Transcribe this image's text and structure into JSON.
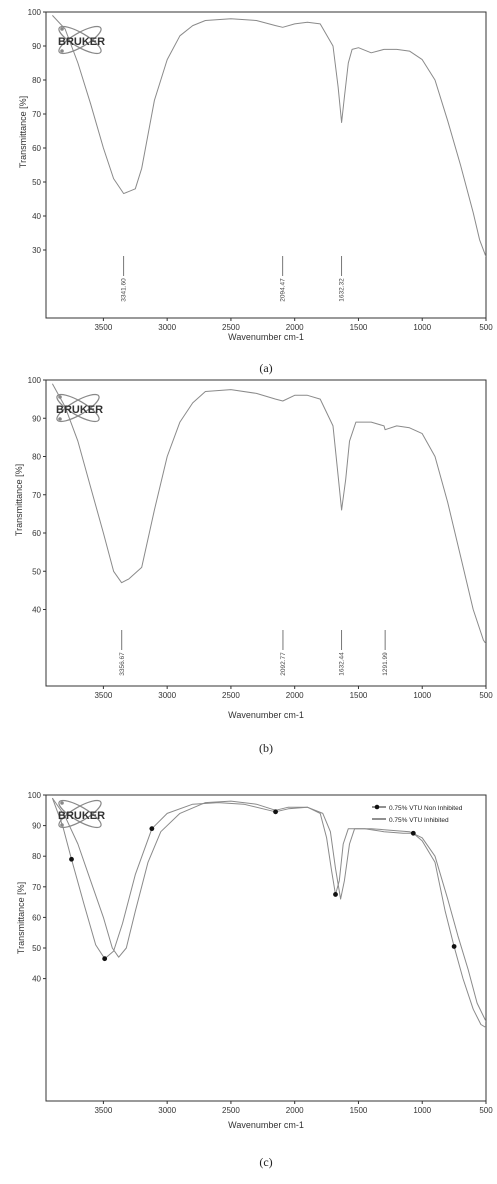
{
  "logo_text": "BRUKER",
  "colors": {
    "curve": "#8a8a8a",
    "axis": "#333333",
    "text": "#333333"
  },
  "chart_data": [
    {
      "type": "line",
      "panel_label": "(a)",
      "xlabel": "Wavenumber cm-1",
      "ylabel": "Transmittance [%]",
      "xlim": [
        3950,
        500
      ],
      "ylim": [
        10,
        100
      ],
      "x_reversed": true,
      "x_ticks": [
        3500,
        3000,
        2500,
        2000,
        1500,
        1000,
        500
      ],
      "y_ticks": [
        30,
        40,
        50,
        60,
        70,
        80,
        90,
        100
      ],
      "series": [
        {
          "points": [
            [
              3900,
              99
            ],
            [
              3800,
              95
            ],
            [
              3700,
              85
            ],
            [
              3600,
              73
            ],
            [
              3500,
              60
            ],
            [
              3420,
              51
            ],
            [
              3341,
              46.6
            ],
            [
              3250,
              48
            ],
            [
              3200,
              54
            ],
            [
              3100,
              74
            ],
            [
              3000,
              86
            ],
            [
              2900,
              93
            ],
            [
              2800,
              96
            ],
            [
              2700,
              97.5
            ],
            [
              2500,
              98
            ],
            [
              2300,
              97.5
            ],
            [
              2150,
              96
            ],
            [
              2094,
              95.5
            ],
            [
              2000,
              96.5
            ],
            [
              1900,
              97
            ],
            [
              1800,
              96.5
            ],
            [
              1700,
              90
            ],
            [
              1660,
              78
            ],
            [
              1632,
              67.5
            ],
            [
              1610,
              75
            ],
            [
              1580,
              85
            ],
            [
              1550,
              89
            ],
            [
              1500,
              89.5
            ],
            [
              1400,
              88
            ],
            [
              1300,
              89
            ],
            [
              1200,
              89
            ],
            [
              1100,
              88.5
            ],
            [
              1000,
              86
            ],
            [
              900,
              80
            ],
            [
              800,
              68
            ],
            [
              700,
              55
            ],
            [
              600,
              41
            ],
            [
              550,
              33
            ],
            [
              500,
              28
            ]
          ]
        }
      ],
      "peak_labels": [
        {
          "x": 3341,
          "text": "3341.60"
        },
        {
          "x": 2094,
          "text": "2094.47"
        },
        {
          "x": 1632,
          "text": "1632.32"
        }
      ]
    },
    {
      "type": "line",
      "panel_label": "(b)",
      "xlabel": "Wavenumber cm-1",
      "ylabel": "Transmittance [%]",
      "xlim": [
        3950,
        500
      ],
      "ylim": [
        20,
        100
      ],
      "x_reversed": true,
      "x_ticks": [
        3500,
        3000,
        2500,
        2000,
        1500,
        1000,
        500
      ],
      "y_ticks": [
        40,
        50,
        60,
        70,
        80,
        90,
        100
      ],
      "series": [
        {
          "points": [
            [
              3900,
              99
            ],
            [
              3800,
              93
            ],
            [
              3700,
              84
            ],
            [
              3600,
              72
            ],
            [
              3500,
              60
            ],
            [
              3420,
              50
            ],
            [
              3357,
              47
            ],
            [
              3300,
              48
            ],
            [
              3200,
              51
            ],
            [
              3100,
              66
            ],
            [
              3000,
              80
            ],
            [
              2900,
              89
            ],
            [
              2800,
              94
            ],
            [
              2700,
              97
            ],
            [
              2500,
              97.5
            ],
            [
              2300,
              96.5
            ],
            [
              2150,
              95
            ],
            [
              2093,
              94.5
            ],
            [
              2000,
              96
            ],
            [
              1900,
              96
            ],
            [
              1800,
              95
            ],
            [
              1700,
              88
            ],
            [
              1660,
              75
            ],
            [
              1632,
              66
            ],
            [
              1600,
              74
            ],
            [
              1570,
              84
            ],
            [
              1520,
              89
            ],
            [
              1400,
              89
            ],
            [
              1300,
              88
            ],
            [
              1291,
              87
            ],
            [
              1200,
              88
            ],
            [
              1100,
              87.5
            ],
            [
              1000,
              86
            ],
            [
              900,
              80
            ],
            [
              800,
              68
            ],
            [
              700,
              54
            ],
            [
              600,
              40
            ],
            [
              520,
              32
            ],
            [
              500,
              31
            ]
          ]
        }
      ],
      "peak_labels": [
        {
          "x": 3356,
          "text": "3356.67"
        },
        {
          "x": 2092,
          "text": "2092.77"
        },
        {
          "x": 1632,
          "text": "1632.44"
        },
        {
          "x": 1291,
          "text": "1291.99"
        }
      ]
    },
    {
      "type": "line",
      "panel_label": "(c)",
      "xlabel": "Wavenumber cm-1",
      "ylabel": "Transmittance [%]",
      "xlim": [
        3950,
        500
      ],
      "ylim": [
        0,
        100
      ],
      "x_reversed": true,
      "x_ticks": [
        3500,
        3000,
        2500,
        2000,
        1500,
        1000,
        500
      ],
      "y_ticks": [
        40,
        50,
        60,
        70,
        80,
        90,
        100
      ],
      "legend": "top-right",
      "series": [
        {
          "name": "0.75% VTU Non Inhibited",
          "marker": "circle",
          "points": [
            [
              3900,
              99
            ],
            [
              3820,
              90
            ],
            [
              3750,
              79
            ],
            [
              3650,
              64
            ],
            [
              3560,
              51
            ],
            [
              3490,
              46.5
            ],
            [
              3420,
              49
            ],
            [
              3350,
              58
            ],
            [
              3250,
              74
            ],
            [
              3120,
              89
            ],
            [
              3000,
              94
            ],
            [
              2800,
              97
            ],
            [
              2600,
              97.5
            ],
            [
              2400,
              97
            ],
            [
              2200,
              95
            ],
            [
              2150,
              94.5
            ],
            [
              2050,
              95.5
            ],
            [
              1900,
              96
            ],
            [
              1800,
              94
            ],
            [
              1750,
              86
            ],
            [
              1710,
              75
            ],
            [
              1680,
              67.5
            ],
            [
              1650,
              72
            ],
            [
              1620,
              84
            ],
            [
              1580,
              89
            ],
            [
              1450,
              89
            ],
            [
              1300,
              88
            ],
            [
              1150,
              87.5
            ],
            [
              1070,
              87.5
            ],
            [
              1000,
              85
            ],
            [
              900,
              78
            ],
            [
              820,
              62
            ],
            [
              750,
              50.5
            ],
            [
              680,
              40
            ],
            [
              600,
              30
            ],
            [
              540,
              25
            ],
            [
              500,
              24
            ]
          ]
        },
        {
          "name": "0.75% VTU Inhibited",
          "marker": "none",
          "points": [
            [
              3900,
              99
            ],
            [
              3800,
              93
            ],
            [
              3700,
              84
            ],
            [
              3600,
              72
            ],
            [
              3500,
              60
            ],
            [
              3430,
              50
            ],
            [
              3380,
              47
            ],
            [
              3320,
              50
            ],
            [
              3250,
              62
            ],
            [
              3150,
              78
            ],
            [
              3050,
              88
            ],
            [
              2900,
              94
            ],
            [
              2700,
              97.5
            ],
            [
              2500,
              98
            ],
            [
              2300,
              97
            ],
            [
              2150,
              95
            ],
            [
              2050,
              96
            ],
            [
              1900,
              96
            ],
            [
              1780,
              94
            ],
            [
              1720,
              88
            ],
            [
              1680,
              76
            ],
            [
              1640,
              66
            ],
            [
              1610,
              72
            ],
            [
              1570,
              84
            ],
            [
              1530,
              89
            ],
            [
              1400,
              89
            ],
            [
              1250,
              88.5
            ],
            [
              1100,
              88
            ],
            [
              1000,
              86
            ],
            [
              900,
              80
            ],
            [
              800,
              66
            ],
            [
              720,
              54
            ],
            [
              640,
              43
            ],
            [
              570,
              32
            ],
            [
              500,
              26
            ]
          ]
        }
      ]
    }
  ]
}
